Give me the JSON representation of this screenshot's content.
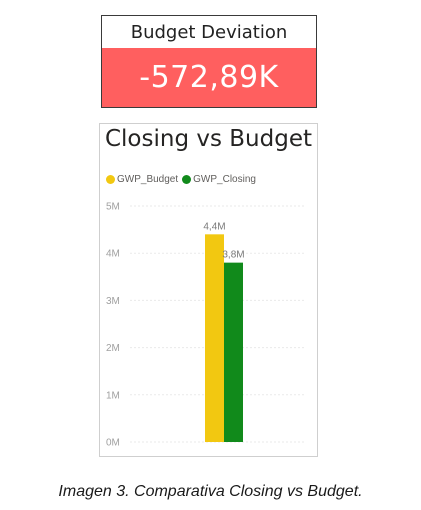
{
  "kpi": {
    "title": "Budget Deviation",
    "value": "-572,89K",
    "value_bg": "#ff5f5f"
  },
  "chart_data": {
    "type": "bar",
    "title": "Closing vs Budget",
    "xlabel": "",
    "ylabel": "",
    "ylim": [
      0,
      5000000
    ],
    "y_ticks": [
      {
        "value": 0,
        "label": "0M"
      },
      {
        "value": 1000000,
        "label": "1M"
      },
      {
        "value": 2000000,
        "label": "2M"
      },
      {
        "value": 3000000,
        "label": "3M"
      },
      {
        "value": 4000000,
        "label": "4M"
      },
      {
        "value": 5000000,
        "label": "5M"
      }
    ],
    "grid": true,
    "legend_position": "top-left",
    "categories": [
      ""
    ],
    "series": [
      {
        "name": "GWP_Budget",
        "color": "#f2c811",
        "values": [
          4400000
        ],
        "labels": [
          "4,4M"
        ]
      },
      {
        "name": "GWP_Closing",
        "color": "#118a1b",
        "values": [
          3800000
        ],
        "labels": [
          "3,8M"
        ]
      }
    ]
  },
  "caption": "Imagen 3. Comparativa Closing vs Budget."
}
